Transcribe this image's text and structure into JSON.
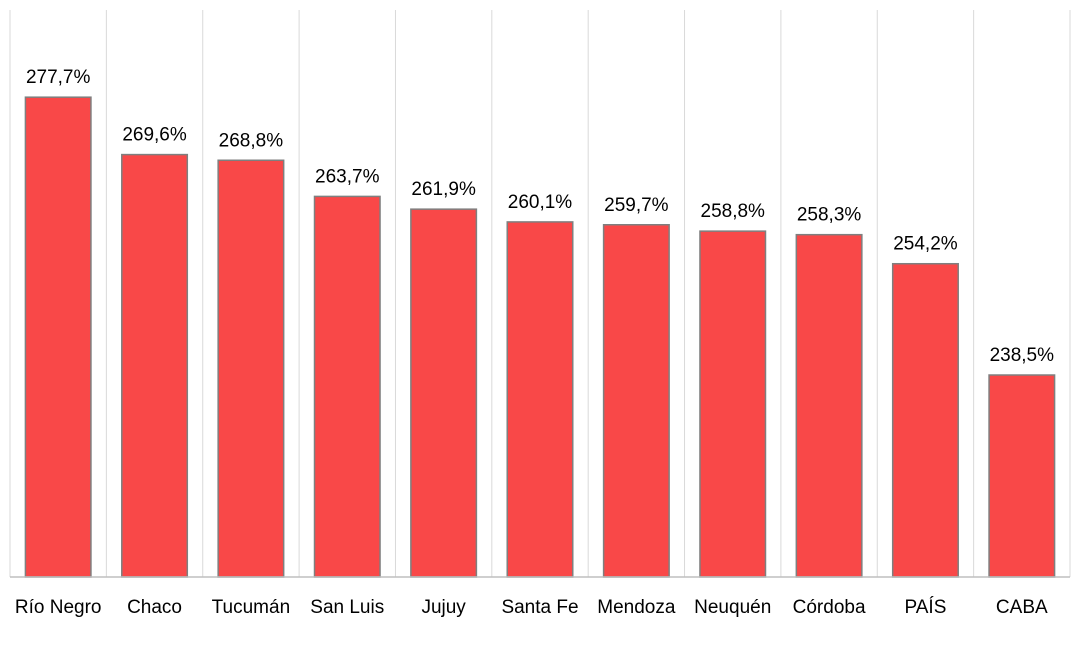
{
  "chart_data": {
    "type": "bar",
    "categories": [
      "Río Negro",
      "Chaco",
      "Tucumán",
      "San Luis",
      "Jujuy",
      "Santa Fe",
      "Mendoza",
      "Neuquén",
      "Córdoba",
      "PAÍS",
      "CABA"
    ],
    "values": [
      277.7,
      269.6,
      268.8,
      263.7,
      261.9,
      260.1,
      259.7,
      258.8,
      258.3,
      254.2,
      238.5
    ],
    "value_labels": [
      "277,7%",
      "269,6%",
      "268,8%",
      "263,7%",
      "261,9%",
      "260,1%",
      "259,7%",
      "258,8%",
      "258,3%",
      "254,2%",
      "238,5%"
    ],
    "color": "#f94848",
    "ylim": [
      210,
      290
    ]
  }
}
